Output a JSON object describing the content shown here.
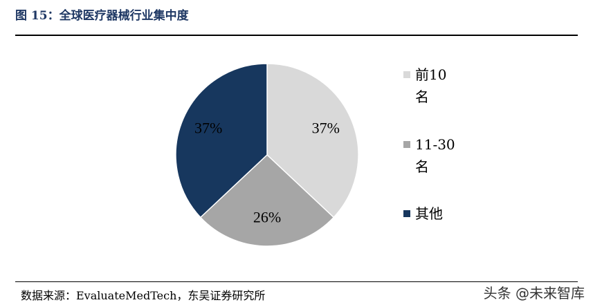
{
  "chart_data": {
    "type": "pie",
    "title": "图 15：全球医疗器械行业集中度",
    "categories": [
      "前10名",
      "11-30名",
      "其他"
    ],
    "values": [
      37,
      26,
      37
    ],
    "value_labels": [
      "37%",
      "26%",
      "37%"
    ],
    "colors": [
      "#d9d9d9",
      "#a6a6a6",
      "#17375e"
    ],
    "legend": "right",
    "source": "数据来源：EvaluateMedTech，东吴证券研究所",
    "watermark": "头条 @未来智库"
  }
}
